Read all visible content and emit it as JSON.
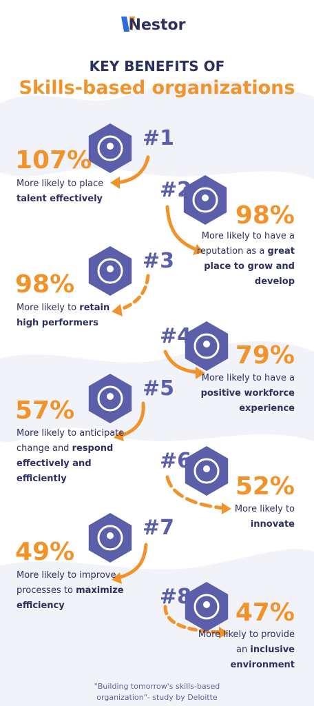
{
  "header": {
    "logo": "Nestor",
    "title": "KEY BENEFITS OF",
    "subtitle": "Skills-based organizations"
  },
  "items": [
    {
      "rank": "#1",
      "stat": "107%",
      "text": "More likely to place",
      "strong": "talent effectively"
    },
    {
      "rank": "#2",
      "stat": "98%",
      "text": "More likely to have a reputation as a",
      "strong": "great place to grow and develop"
    },
    {
      "rank": "#3",
      "stat": "98%",
      "text": "More likely to",
      "strong": "retain high performers"
    },
    {
      "rank": "#4",
      "stat": "79%",
      "text": "More likely to have a",
      "strong": "positive workforce experience"
    },
    {
      "rank": "#5",
      "stat": "57%",
      "text": "More likely to anticipate change and",
      "strong": "respond effectively and efficiently"
    },
    {
      "rank": "#6",
      "stat": "52%",
      "text": "More likely to",
      "strong": "innovate"
    },
    {
      "rank": "#7",
      "stat": "49%",
      "text": "More likely to improve processes to",
      "strong": "maximize efficiency"
    },
    {
      "rank": "#8",
      "stat": "47%",
      "text": "More likely to provide an",
      "strong": "inclusive environment"
    }
  ],
  "footer": "\"Building tomorrow's skills-based organization\"- study by Deloitte"
}
